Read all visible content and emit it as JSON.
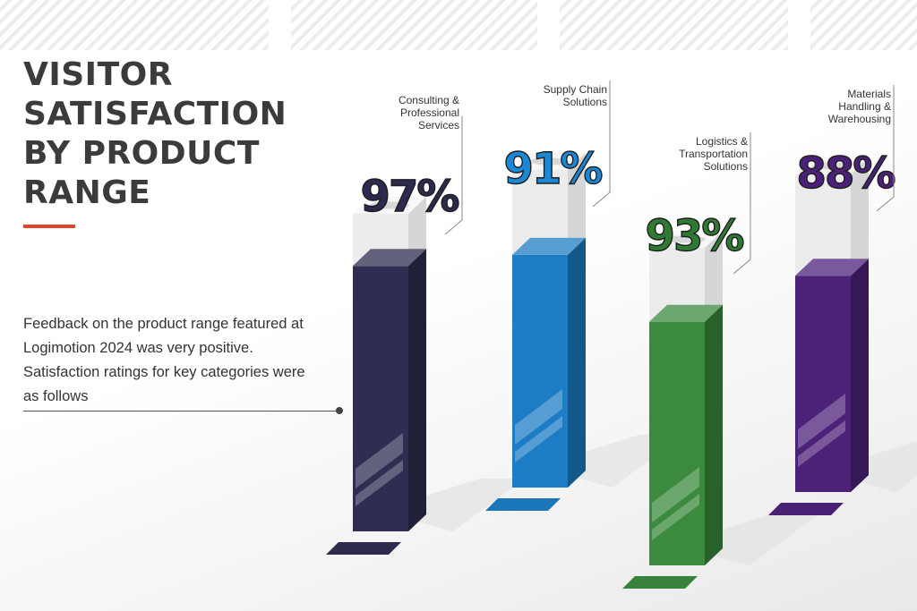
{
  "title_lines": [
    "VISITOR",
    "SATISFACTION",
    "BY PRODUCT",
    "RANGE"
  ],
  "description": "Feedback on the product range featured at Logimotion 2024 was very positive. Satisfaction ratings for key categories were as follows",
  "accent_color": "#e0452c",
  "chart_data": {
    "type": "bar",
    "title": "VISITOR SATISFACTION BY PRODUCT RANGE",
    "value_suffix": "%",
    "categories": [
      [
        "Consulting &",
        "Professional",
        "Services"
      ],
      [
        "Supply Chain",
        "Solutions"
      ],
      [
        "Logistics &",
        "Transportation",
        "Solutions"
      ],
      [
        "Materials",
        "Handling &",
        "Warehousing"
      ]
    ],
    "values": [
      97,
      91,
      93,
      88
    ],
    "value_labels": [
      "97%",
      "91%",
      "93%",
      "88%"
    ],
    "colors": [
      "#2f2e52",
      "#1c7cc4",
      "#3b8a3e",
      "#4c2279"
    ],
    "label_colors": [
      "#2b2a4f",
      "#1a88d4",
      "#2f7a33",
      "#4a2079"
    ],
    "ylim": [
      0,
      100
    ]
  }
}
